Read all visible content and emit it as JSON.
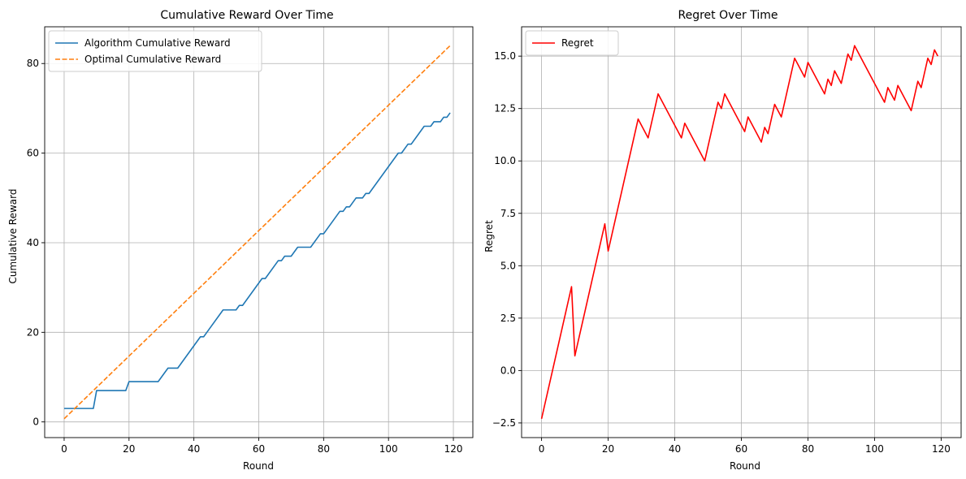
{
  "chart_data": [
    {
      "type": "line",
      "title": "Cumulative Reward Over Time",
      "xlabel": "Round",
      "ylabel": "Cumulative Reward",
      "xlim": [
        -6,
        126
      ],
      "ylim": [
        -3.5,
        88.2
      ],
      "xticks": [
        0,
        20,
        40,
        60,
        80,
        100,
        120
      ],
      "yticks": [
        0,
        20,
        40,
        60,
        80
      ],
      "grid": true,
      "legend": "upper-left",
      "series": [
        {
          "name": "Algorithm Cumulative Reward",
          "color": "#1f77b4",
          "style": "solid",
          "points": [
            [
              0,
              3
            ],
            [
              9,
              3
            ],
            [
              10,
              7
            ],
            [
              19,
              7
            ],
            [
              20,
              9
            ],
            [
              29,
              9
            ],
            [
              32,
              12
            ],
            [
              35,
              12
            ],
            [
              42,
              19
            ],
            [
              43,
              19
            ],
            [
              49,
              25
            ],
            [
              53,
              25
            ],
            [
              54,
              26
            ],
            [
              55,
              26
            ],
            [
              61,
              32
            ],
            [
              62,
              32
            ],
            [
              66,
              36
            ],
            [
              67,
              36
            ],
            [
              68,
              37
            ],
            [
              70,
              37
            ],
            [
              72,
              39
            ],
            [
              76,
              39
            ],
            [
              79,
              42
            ],
            [
              80,
              42
            ],
            [
              85,
              47
            ],
            [
              86,
              47
            ],
            [
              87,
              48
            ],
            [
              88,
              48
            ],
            [
              90,
              50
            ],
            [
              92,
              50
            ],
            [
              93,
              51
            ],
            [
              94,
              51
            ],
            [
              103,
              60
            ],
            [
              104,
              60
            ],
            [
              106,
              62
            ],
            [
              107,
              62
            ],
            [
              111,
              66
            ],
            [
              113,
              66
            ],
            [
              114,
              67
            ],
            [
              116,
              67
            ],
            [
              117,
              68
            ],
            [
              118,
              68
            ],
            [
              119,
              69
            ]
          ]
        },
        {
          "name": "Optimal Cumulative Reward",
          "color": "#ff7f0e",
          "style": "dashed",
          "points": [
            [
              0,
              0.7
            ],
            [
              119,
              84
            ]
          ]
        }
      ]
    },
    {
      "type": "line",
      "title": "Regret Over Time",
      "xlabel": "Round",
      "ylabel": "Regret",
      "xlim": [
        -6,
        126
      ],
      "ylim": [
        -3.2,
        16.4
      ],
      "xticks": [
        0,
        20,
        40,
        60,
        80,
        100,
        120
      ],
      "yticks": [
        -2.5,
        0.0,
        2.5,
        5.0,
        7.5,
        10.0,
        12.5,
        15.0
      ],
      "ytick_labels": [
        "−2.5",
        "0.0",
        "2.5",
        "5.0",
        "7.5",
        "10.0",
        "12.5",
        "15.0"
      ],
      "grid": true,
      "legend": "upper-left",
      "series": [
        {
          "name": "Regret",
          "color": "#ff0000",
          "style": "solid",
          "points": [
            [
              0,
              -2.3
            ],
            [
              9,
              4.0
            ],
            [
              10,
              0.7
            ],
            [
              19,
              7.0
            ],
            [
              20,
              5.7
            ],
            [
              29,
              12.0
            ],
            [
              32,
              11.1
            ],
            [
              35,
              13.2
            ],
            [
              42,
              11.1
            ],
            [
              43,
              11.8
            ],
            [
              49,
              10.0
            ],
            [
              53,
              12.8
            ],
            [
              54,
              12.5
            ],
            [
              55,
              13.2
            ],
            [
              61,
              11.4
            ],
            [
              62,
              12.1
            ],
            [
              66,
              10.9
            ],
            [
              67,
              11.6
            ],
            [
              68,
              11.3
            ],
            [
              70,
              12.7
            ],
            [
              72,
              12.1
            ],
            [
              76,
              14.9
            ],
            [
              79,
              14.0
            ],
            [
              80,
              14.7
            ],
            [
              85,
              13.2
            ],
            [
              86,
              13.9
            ],
            [
              87,
              13.6
            ],
            [
              88,
              14.3
            ],
            [
              90,
              13.7
            ],
            [
              92,
              15.1
            ],
            [
              93,
              14.8
            ],
            [
              94,
              15.5
            ],
            [
              103,
              12.8
            ],
            [
              104,
              13.5
            ],
            [
              106,
              12.9
            ],
            [
              107,
              13.6
            ],
            [
              111,
              12.4
            ],
            [
              113,
              13.8
            ],
            [
              114,
              13.5
            ],
            [
              116,
              14.9
            ],
            [
              117,
              14.6
            ],
            [
              118,
              15.3
            ],
            [
              119,
              15.0
            ]
          ]
        }
      ]
    }
  ]
}
